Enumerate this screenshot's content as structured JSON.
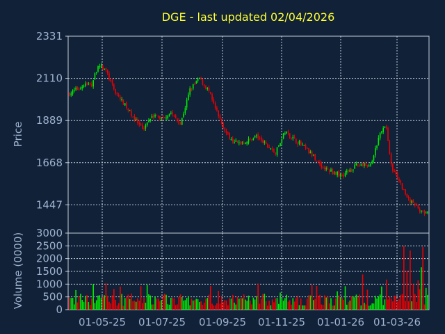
{
  "chart_data": [
    {
      "type": "candlestick",
      "title": "DGE - last updated 02/04/2026",
      "ylabel": "Price",
      "ylim": [
        1299,
        2331
      ],
      "yticks": [
        2331,
        2110,
        1889,
        1668,
        1447
      ],
      "x_tick_labels": [
        "01-05-25",
        "01-07-25",
        "01-09-25",
        "01-11-25",
        "01-01-26",
        "01-03-26"
      ],
      "grid": true,
      "up_color": "#00ee00",
      "down_color": "#ee0000",
      "anchors": [
        [
          0,
          2030
        ],
        [
          6,
          2060
        ],
        [
          10,
          2080
        ],
        [
          14,
          2075
        ],
        [
          18,
          2180
        ],
        [
          23,
          2150
        ],
        [
          28,
          2050
        ],
        [
          34,
          1980
        ],
        [
          40,
          1910
        ],
        [
          46,
          1840
        ],
        [
          52,
          1920
        ],
        [
          58,
          1900
        ],
        [
          64,
          1930
        ],
        [
          70,
          1870
        ],
        [
          76,
          2050
        ],
        [
          82,
          2110
        ],
        [
          88,
          2040
        ],
        [
          94,
          1910
        ],
        [
          100,
          1810
        ],
        [
          106,
          1770
        ],
        [
          112,
          1780
        ],
        [
          118,
          1810
        ],
        [
          124,
          1760
        ],
        [
          130,
          1720
        ],
        [
          136,
          1830
        ],
        [
          142,
          1790
        ],
        [
          148,
          1750
        ],
        [
          154,
          1700
        ],
        [
          160,
          1640
        ],
        [
          166,
          1620
        ],
        [
          172,
          1600
        ],
        [
          178,
          1640
        ],
        [
          184,
          1660
        ],
        [
          190,
          1650
        ],
        [
          196,
          1820
        ],
        [
          200,
          1860
        ],
        [
          203,
          1650
        ],
        [
          208,
          1570
        ],
        [
          214,
          1470
        ],
        [
          220,
          1430
        ],
        [
          226,
          1400
        ]
      ],
      "n_bars": 227
    },
    {
      "type": "bar",
      "ylabel": "Volume (0000)",
      "ylim": [
        0,
        3000
      ],
      "yticks": [
        3000,
        2500,
        2000,
        1500,
        1000,
        500,
        0
      ],
      "spikes": [
        [
          185,
          1380
        ],
        [
          200,
          1180
        ],
        [
          211,
          2500
        ],
        [
          213,
          1520
        ],
        [
          215,
          2320
        ],
        [
          217,
          1000
        ],
        [
          220,
          1150
        ],
        [
          222,
          1660
        ],
        [
          223,
          2460
        ],
        [
          225,
          850
        ]
      ]
    }
  ]
}
